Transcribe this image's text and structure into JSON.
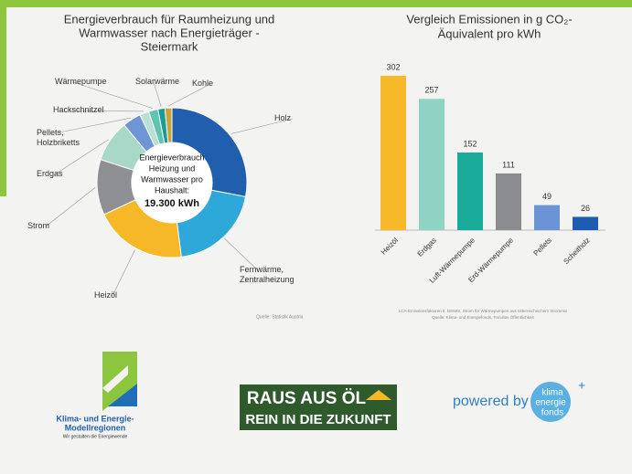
{
  "chart_data": [
    {
      "type": "donut",
      "title": [
        "Energieverbrauch für Raumheizung und",
        "Warmwasser nach Energieträger -",
        "Steiermark"
      ],
      "center_text": [
        "Energieverbrauch",
        "Heizung und",
        "Warmwasser pro",
        "Haushalt:",
        "19.300 kWh"
      ],
      "categories": [
        "Holz",
        "Fernwärme, Zentralheizung",
        "Heizöl",
        "Strom",
        "Erdgas",
        "Pellets, Holzbriketts",
        "Hackschnitzel",
        "Wärmepumpe",
        "Solarwärme",
        "Kohle"
      ],
      "values": [
        28,
        20,
        20,
        12,
        9,
        4,
        2,
        2,
        1.5,
        1.5
      ],
      "colors": [
        "#1f5fae",
        "#2ea8d8",
        "#f6b827",
        "#8e9093",
        "#a8d8c8",
        "#6f95d4",
        "#b9e0d4",
        "#5fc4b0",
        "#1a9b95",
        "#c8a33a"
      ],
      "source": "Quelle: Statistik Austria"
    },
    {
      "type": "bar",
      "title": [
        "Vergleich Emissionen in g CO₂-",
        "Äquivalent pro kWh"
      ],
      "categories": [
        "Heizöl",
        "Erdgas",
        "Luft-Wärmepumpe",
        "Erd-Wärmepumpe",
        "Pellets",
        "Scheitholz"
      ],
      "values": [
        302,
        257,
        152,
        111,
        49,
        26
      ],
      "colors": [
        "#f7b82a",
        "#8fd3c4",
        "#19aa9a",
        "#8a8c8f",
        "#6c93d6",
        "#1d5cb0"
      ],
      "source": [
        "LCA-Emissionsfaktoren lt. GEMIS, Strom für Wärmepumpen aus österreichischem Strommix",
        "Quelle: Klima- und Energiefonds, Facultas Öffentlichkeit"
      ]
    }
  ],
  "logos": {
    "modellregionen": [
      "Klima- und Energie-",
      "Modellregionen",
      "Wir gestalten die Energiewende"
    ],
    "raus_aus_oel": [
      "RAUS AUS ÖL",
      "REIN IN DIE ZUKUNFT"
    ],
    "powered_by": "powered by",
    "fonds": [
      "klima",
      "energie",
      "fonds"
    ]
  }
}
